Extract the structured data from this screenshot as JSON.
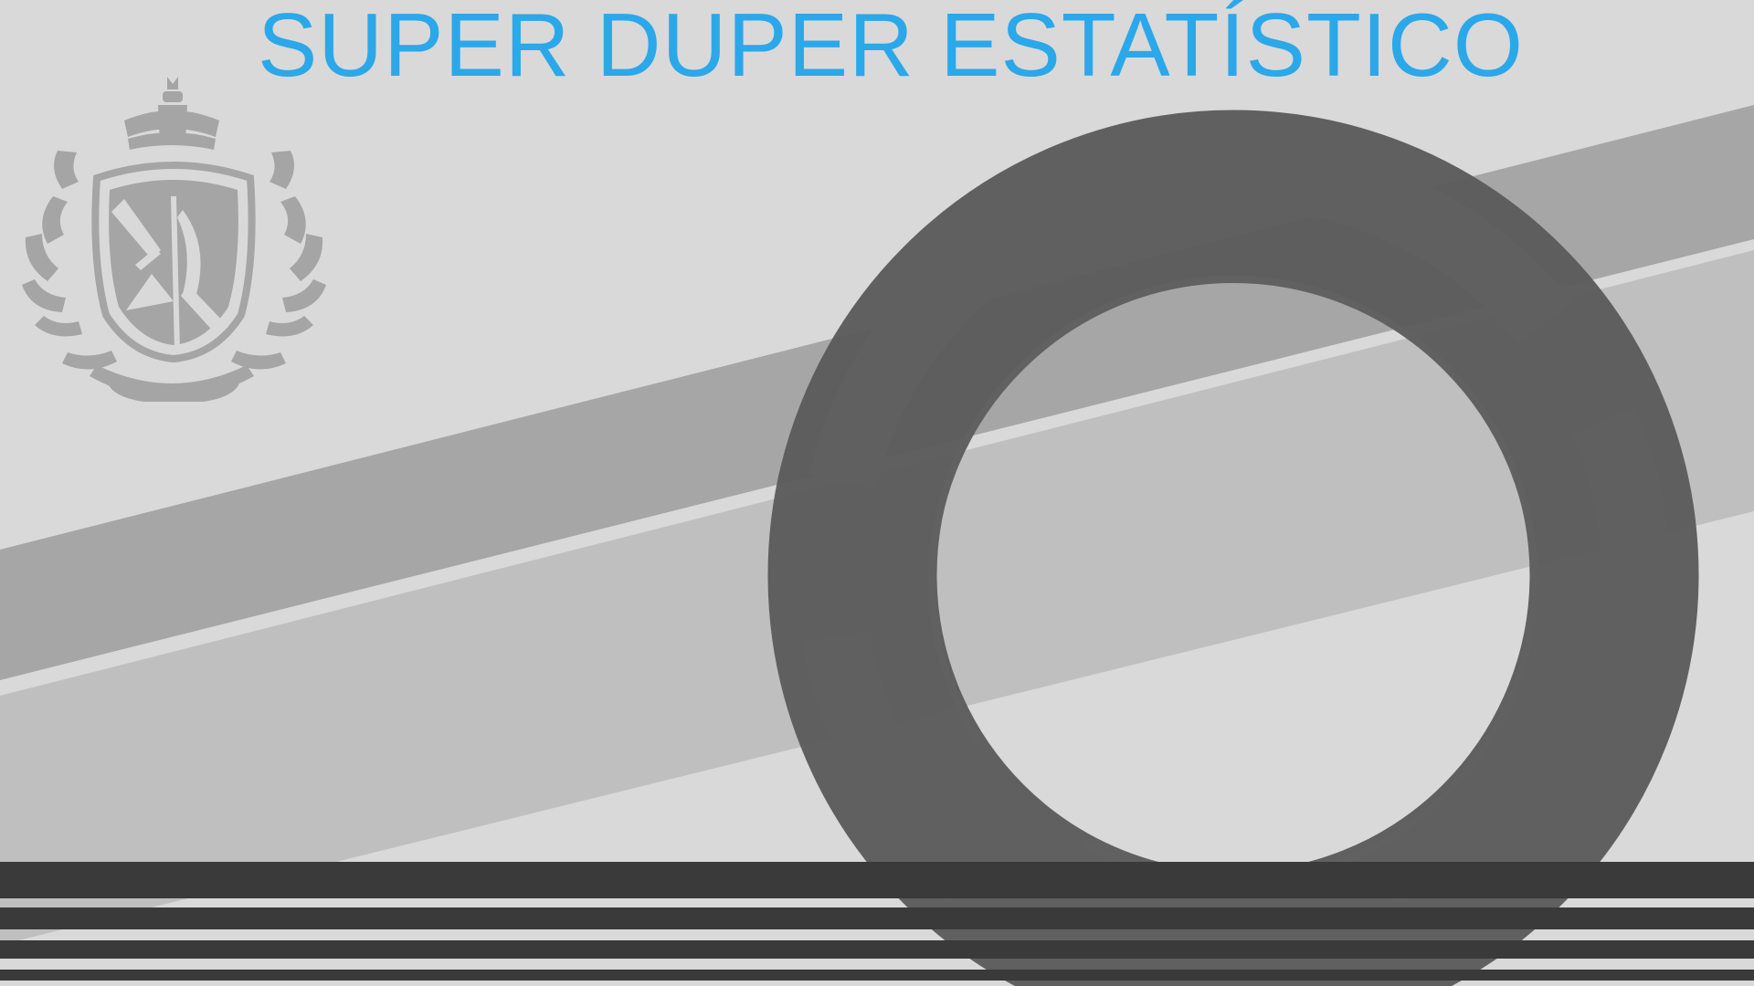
{
  "slide": {
    "title": "SUPER DUPER ESTATÍSTICO",
    "crest_icon": "royal-crest-icon"
  },
  "colors": {
    "title": "#2aa8ea",
    "background": "#d9d9d9",
    "band_dark": "#a6a6a6",
    "band_light": "#bfbfbf",
    "ring_dark": "#5b5b5b",
    "rings_mid": "#606060",
    "stripes": "#3a3a3a",
    "crest": "#a5a5a5"
  }
}
